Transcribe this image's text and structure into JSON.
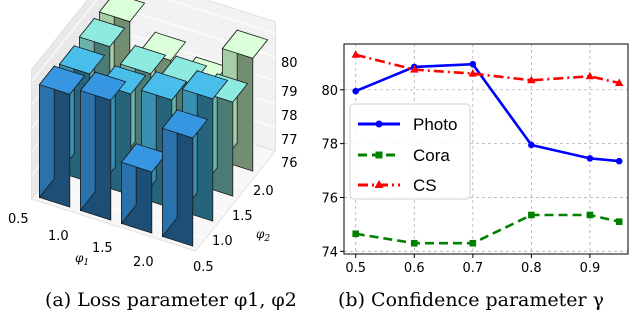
{
  "chart_data": [
    {
      "type": "bar3d",
      "panel": "a",
      "caption": "(a) Loss parameter φ1, φ2",
      "xlabel": "φ1",
      "ylabel": "φ2",
      "x_ticks": [
        "0.5",
        "1.0",
        "1.5",
        "2.0"
      ],
      "y_ticks": [
        "0.5",
        "1.0",
        "1.5",
        "2.0"
      ],
      "z_ticks": [
        "76",
        "77",
        "78",
        "79",
        "80"
      ],
      "zlim": [
        75,
        80.5
      ],
      "phi1": [
        0.5,
        1.0,
        1.5,
        2.0
      ],
      "phi2": [
        0.5,
        1.0,
        1.5,
        2.0
      ],
      "values": [
        [
          79.8,
          80.1,
          77.6,
          79.6
        ],
        [
          79.6,
          79.3,
          79.6,
          80.2
        ],
        [
          79.7,
          79.1,
          79.2,
          79.0
        ],
        [
          79.7,
          78.6,
          78.1,
          79.8
        ]
      ],
      "colors": [
        "#2e7fbf",
        "#3ea1c6",
        "#77c6bd",
        "#b9e4b8"
      ]
    },
    {
      "type": "line",
      "panel": "b",
      "caption": "(b) Confidence parameter γ",
      "x": [
        0.5,
        0.6,
        0.7,
        0.8,
        0.9,
        0.95
      ],
      "x_ticks": [
        "0.5",
        "0.6",
        "0.7",
        "0.8",
        "0.9"
      ],
      "y_ticks": [
        "74",
        "76",
        "78",
        "80"
      ],
      "xlim": [
        0.48,
        0.965
      ],
      "ylim": [
        73.9,
        81.7
      ],
      "grid": true,
      "legend": "center-left",
      "series": [
        {
          "name": "Photo",
          "values": [
            79.95,
            80.85,
            80.95,
            77.95,
            77.45,
            77.35
          ],
          "color": "#0000ff",
          "style": "solid",
          "marker": "circle"
        },
        {
          "name": "Cora",
          "values": [
            74.65,
            74.3,
            74.3,
            75.35,
            75.35,
            75.1
          ],
          "color": "#008000",
          "style": "dash",
          "marker": "square"
        },
        {
          "name": "CS",
          "values": [
            81.3,
            80.75,
            80.6,
            80.35,
            80.5,
            80.25
          ],
          "color": "#ff0000",
          "style": "dashdot",
          "marker": "triangle"
        }
      ]
    }
  ]
}
